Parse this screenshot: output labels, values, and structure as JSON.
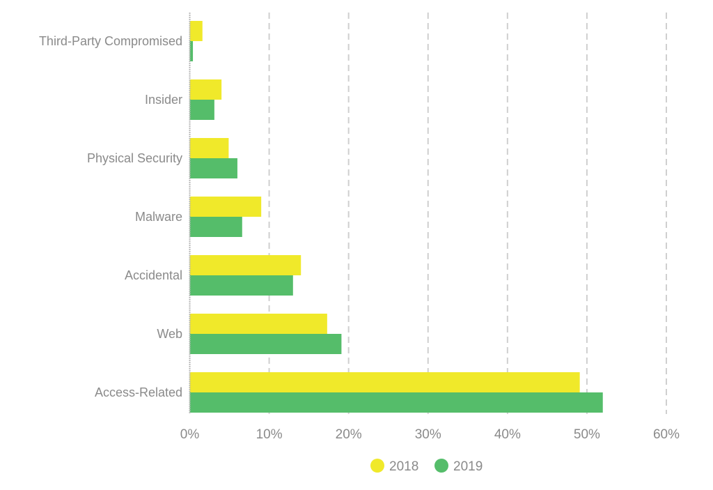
{
  "chart_data": {
    "type": "bar",
    "orientation": "horizontal",
    "categories": [
      "Third-Party Compromised",
      "Insider",
      "Physical Security",
      "Malware",
      "Accidental",
      "Web",
      "Access-Related"
    ],
    "series": [
      {
        "name": "2018",
        "color": "#f0e92a",
        "values": [
          1.6,
          4.0,
          4.9,
          9.0,
          14.0,
          17.3,
          49.1
        ]
      },
      {
        "name": "2019",
        "color": "#55bd6a",
        "values": [
          0.4,
          3.1,
          6.0,
          6.6,
          13.0,
          19.1,
          52.0
        ]
      }
    ],
    "xlim": [
      0,
      60
    ],
    "x_ticks": [
      "0%",
      "10%",
      "20%",
      "30%",
      "40%",
      "50%",
      "60%"
    ],
    "x_tick_values": [
      0,
      10,
      20,
      30,
      40,
      50,
      60
    ],
    "grid": "vertical dashed",
    "legend": "bottom"
  }
}
